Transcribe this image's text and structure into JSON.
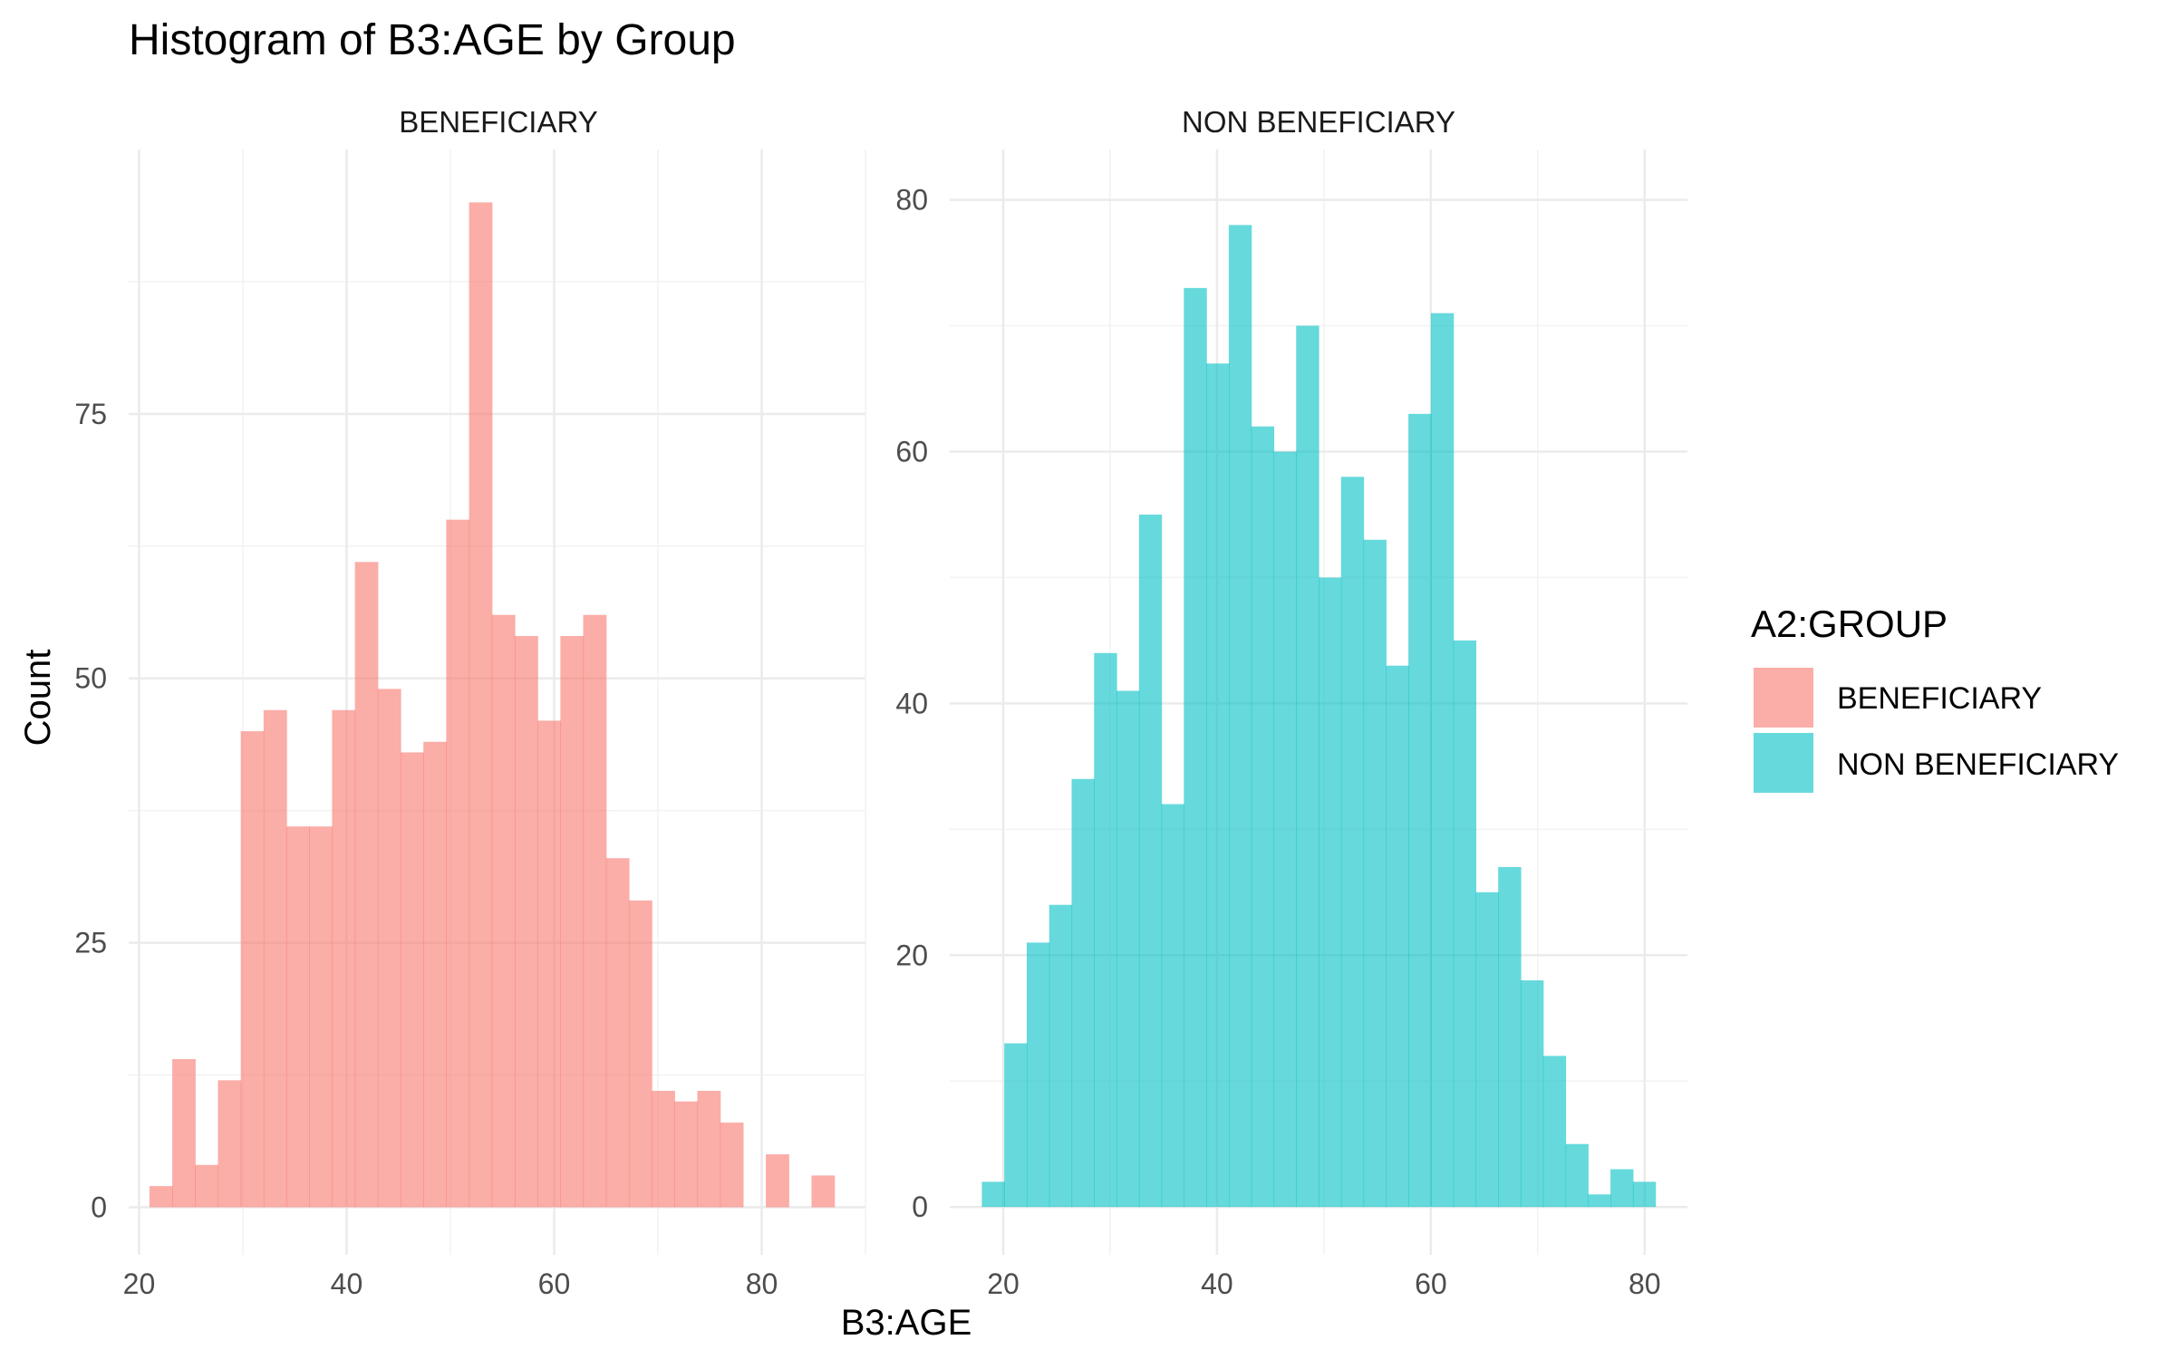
{
  "chart_data": {
    "type": "bar",
    "title": "Histogram of B3:AGE by Group",
    "xlabel": "B3:AGE",
    "ylabel": "Count",
    "grid": true,
    "legend": {
      "title": "A2:GROUP",
      "position": "right",
      "entries": [
        {
          "name": "BENEFICIARY",
          "color": "#F8766D"
        },
        {
          "name": "NON BENEFICIARY",
          "color": "#00BFC4"
        }
      ]
    },
    "panels": [
      {
        "name": "BENEFICIARY",
        "color": "#F8766D",
        "xlim": [
          19,
          90
        ],
        "ylim": [
          -4.5,
          100
        ],
        "x_ticks": [
          20,
          40,
          60,
          80
        ],
        "y_ticks": [
          0,
          25,
          50,
          75
        ],
        "bin_width": 2.2,
        "bin_starts": [
          21,
          23.2,
          25.4,
          27.6,
          29.8,
          32,
          34.2,
          36.4,
          38.6,
          40.8,
          43,
          45.2,
          47.4,
          49.6,
          51.8,
          54,
          56.2,
          58.4,
          60.6,
          62.8,
          65,
          67.2,
          69.4,
          71.6,
          73.8,
          76,
          78.2,
          80.4,
          82.6,
          84.8
        ],
        "counts": [
          2,
          14,
          4,
          12,
          45,
          47,
          36,
          36,
          47,
          61,
          49,
          43,
          44,
          65,
          95,
          56,
          54,
          46,
          54,
          56,
          33,
          29,
          11,
          10,
          11,
          8,
          0,
          5,
          0,
          3
        ]
      },
      {
        "name": "NON BENEFICIARY",
        "color": "#00BFC4",
        "xlim": [
          15,
          84
        ],
        "ylim": [
          -3.8,
          84
        ],
        "x_ticks": [
          20,
          40,
          60,
          80
        ],
        "y_ticks": [
          0,
          20,
          40,
          60,
          80
        ],
        "bin_width": 2.1,
        "bin_starts": [
          18,
          20.1,
          22.2,
          24.3,
          26.4,
          28.5,
          30.6,
          32.7,
          34.8,
          36.9,
          39,
          41.1,
          43.2,
          45.3,
          47.4,
          49.5,
          51.6,
          53.7,
          55.8,
          57.9,
          60,
          62.1,
          64.2,
          66.3,
          68.4,
          70.5,
          72.6,
          74.7,
          76.8,
          78.9
        ],
        "counts": [
          2,
          13,
          21,
          24,
          34,
          44,
          41,
          55,
          32,
          73,
          67,
          78,
          62,
          60,
          70,
          50,
          58,
          53,
          43,
          63,
          71,
          45,
          25,
          27,
          18,
          12,
          5,
          1,
          3,
          2
        ]
      }
    ]
  }
}
